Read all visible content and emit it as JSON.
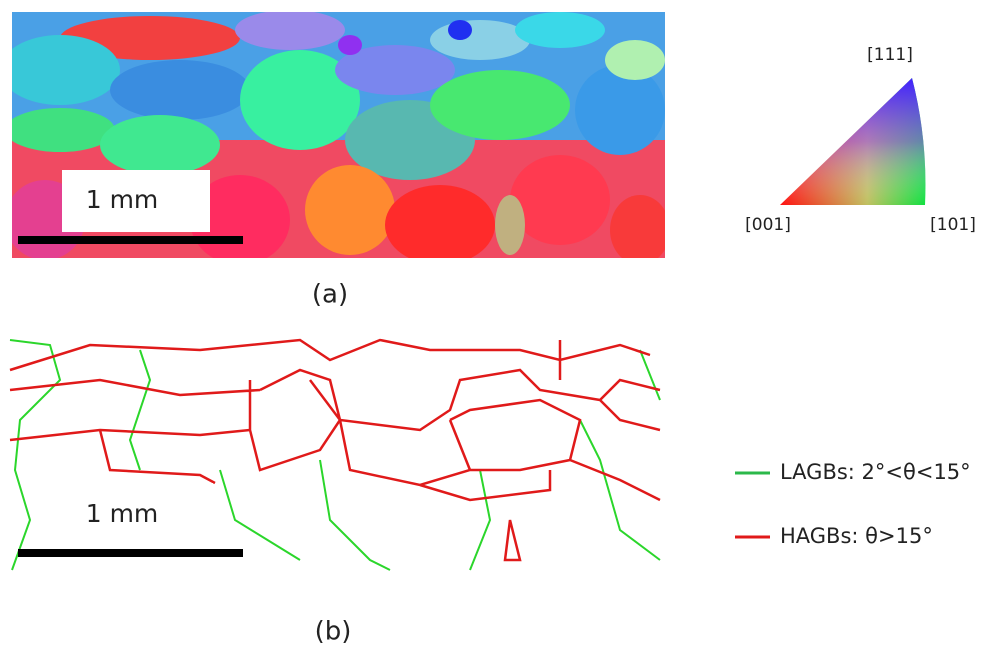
{
  "panel_a": {
    "caption": "(a)",
    "scale_bar": "1 mm"
  },
  "panel_b": {
    "caption": "(b)",
    "scale_bar": "1 mm"
  },
  "ipf_key": {
    "top": "[111]",
    "left": "[001]",
    "right": "[101]"
  },
  "legend": {
    "lagb": "LAGBs: 2°<θ<15°",
    "hagb": "HAGBs: θ>15°"
  }
}
